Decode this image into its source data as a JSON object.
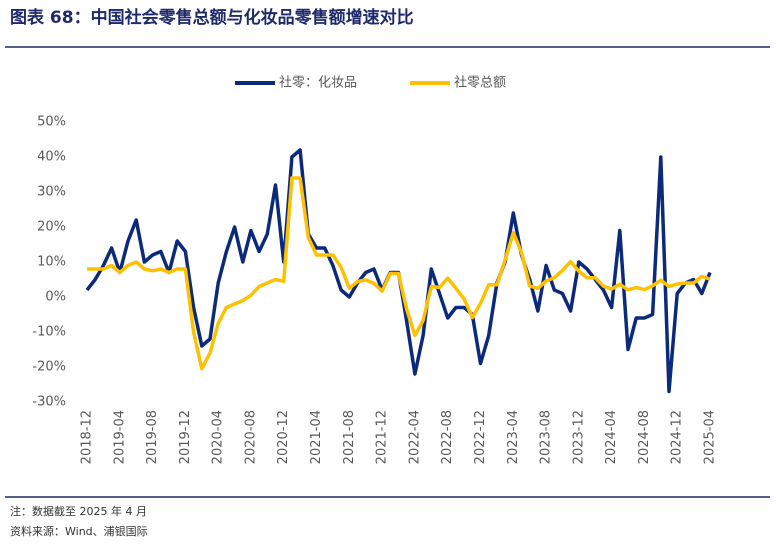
{
  "chart_data": {
    "type": "line",
    "title": "图表 68：中国社会零售总额与化妆品零售额增速对比",
    "notes": [
      "注：数据截至 2025 年 4 月",
      "资料来源：Wind、浦银国际"
    ],
    "categories": [
      "2018-12",
      null,
      null,
      null,
      "2019-04",
      null,
      null,
      null,
      "2019-08",
      null,
      null,
      null,
      "2019-12",
      null,
      null,
      null,
      "2020-04",
      null,
      null,
      null,
      "2020-08",
      null,
      null,
      null,
      "2020-12",
      null,
      null,
      null,
      "2021-04",
      null,
      null,
      null,
      "2021-08",
      null,
      null,
      null,
      "2021-12",
      null,
      null,
      null,
      "2022-04",
      null,
      null,
      null,
      "2022-08",
      null,
      null,
      null,
      "2022-12",
      null,
      null,
      null,
      "2023-04",
      null,
      null,
      null,
      "2023-08",
      null,
      null,
      null,
      "2023-12",
      null,
      null,
      null,
      "2024-04",
      null,
      null,
      null,
      "2024-08",
      null,
      null,
      null,
      "2024-12",
      null,
      null,
      null,
      "2025-04"
    ],
    "series": [
      {
        "name": "社零：化妆品",
        "color": "#0c2a7a",
        "values": [
          2,
          5,
          9,
          14,
          7,
          16,
          22,
          10,
          12,
          13,
          7,
          16,
          13,
          -3,
          -14,
          -12,
          4,
          13,
          20,
          10,
          19,
          13,
          18,
          32,
          10,
          40,
          42,
          18,
          14,
          14,
          9,
          2,
          0,
          4,
          7,
          8,
          2,
          7,
          7,
          -7,
          -22,
          -11,
          8,
          1,
          -6,
          -3,
          -3,
          -5,
          -19,
          -11,
          4,
          10,
          24,
          12,
          5,
          -4,
          9,
          2,
          1,
          -4,
          10,
          8,
          5,
          2,
          -3,
          19,
          -15,
          -6,
          -6,
          -5,
          40,
          -27,
          1,
          4,
          5,
          1,
          7
        ]
      },
      {
        "name": "社零总额",
        "color": "#ffc000",
        "values": [
          8,
          8,
          8,
          9,
          7,
          9,
          10,
          8,
          7.5,
          8,
          7,
          8,
          8,
          -10,
          -20.5,
          -16,
          -7.5,
          -3,
          -2,
          -1,
          0.5,
          3,
          4,
          5,
          4.5,
          34,
          34,
          17,
          12,
          12,
          12,
          8.5,
          2.5,
          4.4,
          4.9,
          3.9,
          1.7,
          6.7,
          6.7,
          -3.5,
          -11,
          -6.7,
          3,
          2.7,
          5.4,
          2.5,
          -0.5,
          -5.9,
          -1.8,
          3.5,
          3.5,
          10.6,
          18.4,
          12.7,
          3.1,
          2.5,
          4.6,
          5.5,
          7.6,
          10.1,
          7.4,
          5.5,
          5.5,
          3.1,
          2.3,
          3.7,
          2,
          2.7,
          2.1,
          3.2,
          4.8,
          3,
          3.7,
          4,
          4,
          5.9,
          5.1
        ]
      }
    ],
    "ylim": [
      -30,
      50
    ],
    "yticks": [
      {
        "value": -30,
        "label": "-30%"
      },
      {
        "value": -20,
        "label": "-20%"
      },
      {
        "value": -10,
        "label": "-10%"
      },
      {
        "value": 0,
        "label": "0%"
      },
      {
        "value": 10,
        "label": "10%"
      },
      {
        "value": 20,
        "label": "20%"
      },
      {
        "value": 30,
        "label": "30%"
      },
      {
        "value": 40,
        "label": "40%"
      },
      {
        "value": 50,
        "label": "50%"
      }
    ],
    "grid": false
  }
}
